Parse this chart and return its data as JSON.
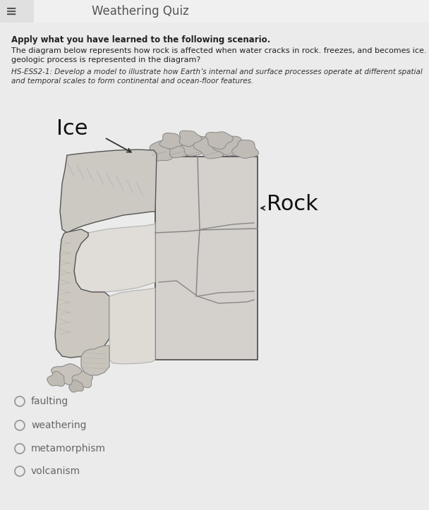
{
  "bg_color": "#e4e4e4",
  "header_bg": "#f0f0f0",
  "body_bg": "#ebebeb",
  "title_text": "Weathering Quiz",
  "header_icon": "≡",
  "bold_text": "Apply what you have learned to the following scenario.",
  "body_text1_line1": "The diagram below represents how rock is affected when water cracks in rock. freezes, and becomes ice. What",
  "body_text1_line2": "geologic process is represented in the diagram?",
  "body_text2_line1": "HS-ESS2-1: Develop a model to illustrate how Earth’s internal and surface processes operate at different spatial",
  "body_text2_line2": "and temporal scales to form continental and ocean-floor features.",
  "label_ice": "Ice",
  "label_rock": "Rock",
  "choices": [
    "faulting",
    "weathering",
    "metamorphism",
    "volcanism"
  ],
  "text_color": "#222222",
  "light_text_color": "#666666",
  "italic_text_color": "#333333",
  "rock_fill": "#d8d5d0",
  "rock_edge": "#555555",
  "crack_color": "#888888",
  "pebble_fill": "#c8c4be",
  "pebble_edge": "#888888"
}
